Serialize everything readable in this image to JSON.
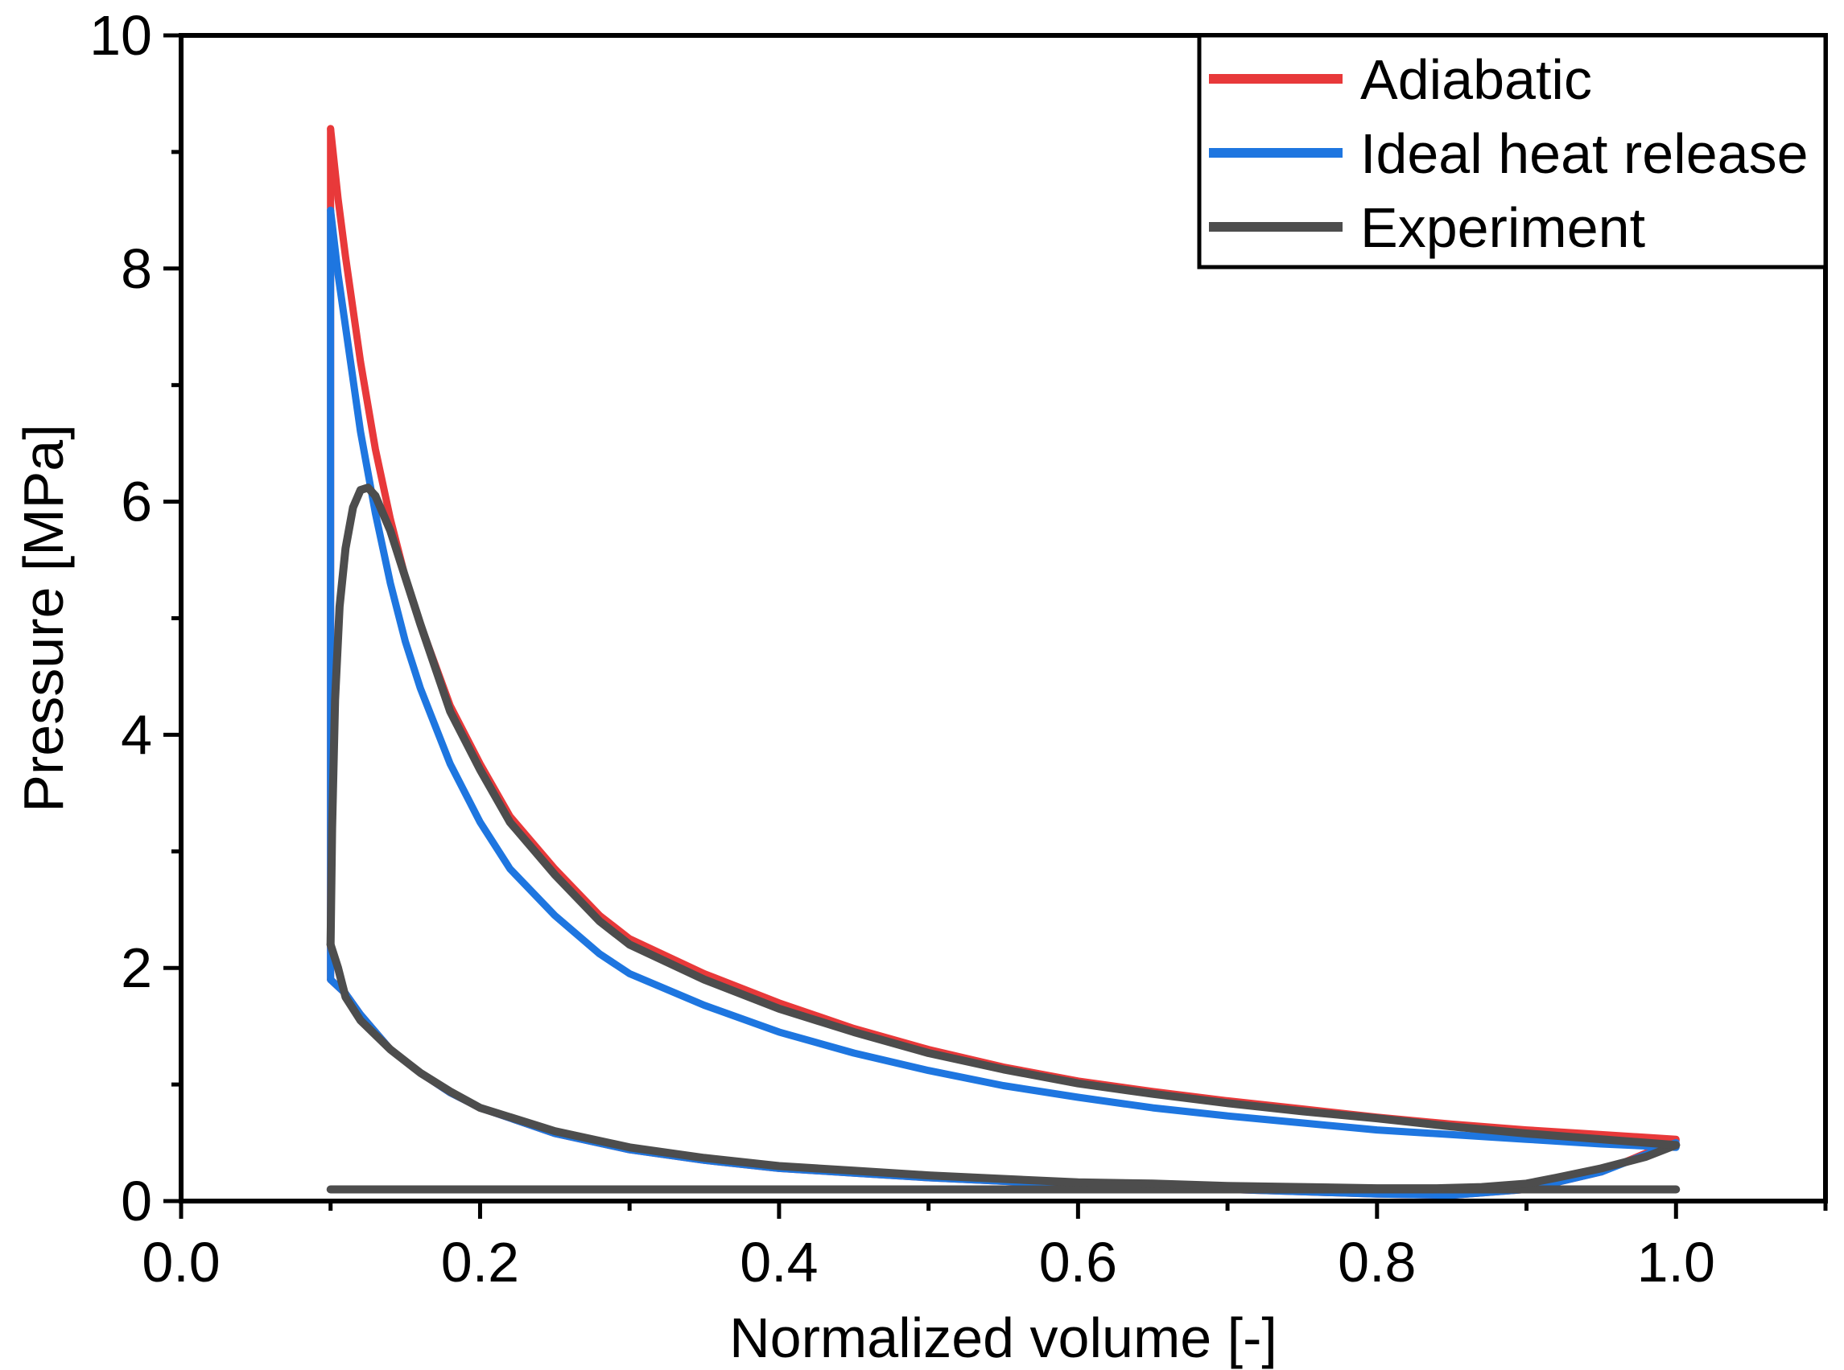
{
  "chart_data": {
    "type": "line",
    "title": "",
    "xlabel": "Normalized volume [-]",
    "ylabel": "Pressure [MPa]",
    "xlim": [
      0,
      1.1
    ],
    "ylim": [
      0,
      10
    ],
    "x_ticks": [
      "0.0",
      "0.2",
      "0.4",
      "0.6",
      "0.8",
      "1.0"
    ],
    "y_ticks": [
      "0",
      "2",
      "4",
      "6",
      "8",
      "10"
    ],
    "grid": false,
    "legend_position": "top-right",
    "series": [
      {
        "name": "Adiabatic",
        "color": "#e8393a",
        "compression": {
          "x": [
            1.0,
            0.95,
            0.9,
            0.85,
            0.8,
            0.75,
            0.7,
            0.65,
            0.6,
            0.55,
            0.5,
            0.45,
            0.4,
            0.35,
            0.3,
            0.25,
            0.2,
            0.18,
            0.16,
            0.14,
            0.12,
            0.11,
            0.1
          ],
          "y": [
            0.52,
            0.25,
            0.1,
            0.05,
            0.06,
            0.08,
            0.1,
            0.12,
            0.14,
            0.17,
            0.2,
            0.24,
            0.28,
            0.35,
            0.44,
            0.58,
            0.8,
            0.93,
            1.1,
            1.3,
            1.6,
            1.78,
            1.9
          ]
        },
        "combustion": {
          "x": [
            0.1,
            0.1
          ],
          "y": [
            1.9,
            9.2
          ]
        },
        "expansion": {
          "x": [
            0.1,
            0.105,
            0.11,
            0.12,
            0.13,
            0.14,
            0.15,
            0.16,
            0.18,
            0.2,
            0.22,
            0.25,
            0.28,
            0.3,
            0.35,
            0.4,
            0.45,
            0.5,
            0.55,
            0.6,
            0.65,
            0.7,
            0.75,
            0.8,
            0.85,
            0.9,
            0.95,
            1.0
          ],
          "y": [
            9.2,
            8.6,
            8.1,
            7.2,
            6.45,
            5.85,
            5.35,
            4.95,
            4.25,
            3.75,
            3.3,
            2.85,
            2.45,
            2.25,
            1.95,
            1.7,
            1.48,
            1.3,
            1.15,
            1.03,
            0.94,
            0.86,
            0.79,
            0.72,
            0.66,
            0.61,
            0.57,
            0.53
          ]
        }
      },
      {
        "name": "Ideal heat release",
        "color": "#1e76e0",
        "compression": {
          "x": [
            1.0,
            0.95,
            0.9,
            0.85,
            0.8,
            0.75,
            0.7,
            0.65,
            0.6,
            0.55,
            0.5,
            0.45,
            0.4,
            0.35,
            0.3,
            0.25,
            0.2,
            0.18,
            0.16,
            0.14,
            0.12,
            0.11,
            0.1
          ],
          "y": [
            0.5,
            0.25,
            0.1,
            0.05,
            0.06,
            0.08,
            0.1,
            0.12,
            0.14,
            0.17,
            0.2,
            0.24,
            0.28,
            0.35,
            0.44,
            0.58,
            0.8,
            0.93,
            1.1,
            1.3,
            1.6,
            1.78,
            1.9
          ]
        },
        "combustion": {
          "x": [
            0.1,
            0.1
          ],
          "y": [
            1.9,
            8.5
          ]
        },
        "expansion": {
          "x": [
            0.1,
            0.105,
            0.11,
            0.12,
            0.13,
            0.14,
            0.15,
            0.16,
            0.18,
            0.2,
            0.22,
            0.25,
            0.28,
            0.3,
            0.35,
            0.4,
            0.45,
            0.5,
            0.55,
            0.6,
            0.65,
            0.7,
            0.75,
            0.8,
            0.85,
            0.9,
            0.95,
            1.0
          ],
          "y": [
            8.5,
            7.95,
            7.5,
            6.6,
            5.9,
            5.3,
            4.8,
            4.4,
            3.75,
            3.25,
            2.85,
            2.45,
            2.12,
            1.95,
            1.68,
            1.45,
            1.27,
            1.12,
            0.99,
            0.89,
            0.8,
            0.73,
            0.67,
            0.61,
            0.57,
            0.53,
            0.49,
            0.46
          ]
        }
      },
      {
        "name": "Experiment",
        "color": "#4d4d4d",
        "intake": {
          "x": [
            1.0,
            0.8,
            0.6,
            0.4,
            0.2,
            0.1
          ],
          "y": [
            0.1,
            0.1,
            0.1,
            0.1,
            0.1,
            0.1
          ]
        },
        "compression": {
          "x": [
            1.0,
            0.98,
            0.95,
            0.92,
            0.9,
            0.87,
            0.84,
            0.8,
            0.75,
            0.7,
            0.65,
            0.6,
            0.55,
            0.5,
            0.45,
            0.4,
            0.35,
            0.3,
            0.25,
            0.2,
            0.18,
            0.16,
            0.14,
            0.12,
            0.11,
            0.105,
            0.1
          ],
          "y": [
            0.48,
            0.38,
            0.28,
            0.2,
            0.15,
            0.12,
            0.11,
            0.11,
            0.12,
            0.13,
            0.15,
            0.16,
            0.19,
            0.22,
            0.26,
            0.3,
            0.37,
            0.46,
            0.6,
            0.8,
            0.94,
            1.1,
            1.3,
            1.55,
            1.75,
            2.0,
            2.2
          ]
        },
        "combustion": {
          "x": [
            0.1,
            0.101,
            0.103,
            0.106,
            0.11,
            0.115,
            0.12,
            0.125,
            0.13
          ],
          "y": [
            2.2,
            3.2,
            4.3,
            5.1,
            5.6,
            5.95,
            6.1,
            6.12,
            6.05
          ]
        },
        "expansion": {
          "x": [
            0.13,
            0.14,
            0.15,
            0.16,
            0.18,
            0.2,
            0.22,
            0.25,
            0.28,
            0.3,
            0.35,
            0.4,
            0.45,
            0.5,
            0.55,
            0.6,
            0.65,
            0.7,
            0.75,
            0.8,
            0.85,
            0.9,
            0.95,
            1.0
          ],
          "y": [
            6.05,
            5.75,
            5.35,
            4.95,
            4.2,
            3.7,
            3.25,
            2.8,
            2.4,
            2.2,
            1.9,
            1.65,
            1.45,
            1.27,
            1.13,
            1.01,
            0.92,
            0.84,
            0.77,
            0.71,
            0.64,
            0.58,
            0.53,
            0.48
          ]
        }
      }
    ]
  }
}
